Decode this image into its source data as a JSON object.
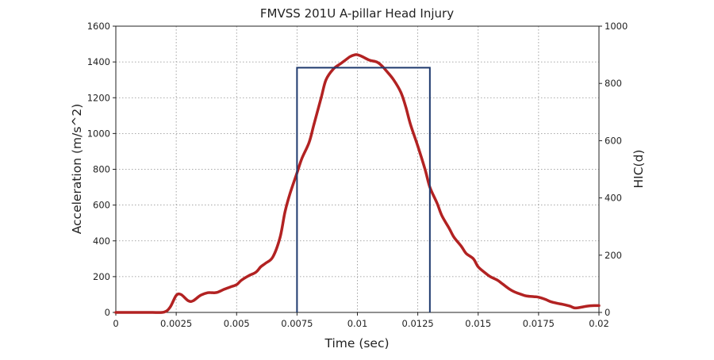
{
  "chart_data": {
    "type": "line",
    "title": "FMVSS 201U A-pillar Head Injury",
    "xlabel": "Time (sec)",
    "ylabel": "Acceleration (m/s^2)",
    "y2label": "HIC(d)",
    "xlim": [
      0,
      0.02
    ],
    "ylim": [
      0,
      1600
    ],
    "y2lim": [
      0,
      1000
    ],
    "x_ticks": [
      "0",
      "0.0025",
      "0.005",
      "0.0075",
      "0.01",
      "0.0125",
      "0.015",
      "0.0175",
      "0.02"
    ],
    "y_ticks": [
      "0",
      "200",
      "400",
      "600",
      "800",
      "1000",
      "1200",
      "1400",
      "1600"
    ],
    "y2_ticks": [
      "0",
      "200",
      "400",
      "600",
      "800",
      "1000"
    ],
    "grid": true,
    "colors": {
      "acceleration": "#b22222",
      "hic_window": "#1f3a6e"
    },
    "series": [
      {
        "axis": "left",
        "x": [
          0,
          0.001,
          0.0015,
          0.002,
          0.00225,
          0.0025,
          0.0027,
          0.003,
          0.0032,
          0.0035,
          0.0038,
          0.004,
          0.0042,
          0.0045,
          0.0048,
          0.005,
          0.0052,
          0.0055,
          0.0058,
          0.006,
          0.0062,
          0.0065,
          0.0068,
          0.007,
          0.0072,
          0.0075,
          0.0077,
          0.008,
          0.0082,
          0.0085,
          0.0087,
          0.009,
          0.0093,
          0.0095,
          0.0097,
          0.0099,
          0.01,
          0.0102,
          0.0105,
          0.0108,
          0.011,
          0.0112,
          0.0115,
          0.0118,
          0.012,
          0.0122,
          0.0125,
          0.0128,
          0.013,
          0.0133,
          0.0135,
          0.0138,
          0.014,
          0.0143,
          0.0145,
          0.0148,
          0.015,
          0.0153,
          0.0155,
          0.0158,
          0.016,
          0.0163,
          0.0165,
          0.0168,
          0.017,
          0.0173,
          0.0175,
          0.0178,
          0.018,
          0.0183,
          0.0185,
          0.0188,
          0.019,
          0.0193,
          0.0195,
          0.0198,
          0.02
        ],
        "y": [
          0,
          0,
          0,
          2,
          30,
          95,
          100,
          65,
          65,
          95,
          110,
          110,
          112,
          130,
          145,
          155,
          180,
          205,
          225,
          255,
          275,
          310,
          420,
          560,
          660,
          780,
          860,
          950,
          1050,
          1200,
          1300,
          1360,
          1390,
          1410,
          1430,
          1440,
          1440,
          1430,
          1410,
          1400,
          1380,
          1350,
          1300,
          1230,
          1150,
          1050,
          930,
          800,
          700,
          610,
          540,
          470,
          420,
          370,
          330,
          300,
          255,
          220,
          200,
          180,
          160,
          130,
          115,
          100,
          92,
          88,
          85,
          72,
          60,
          50,
          45,
          35,
          25,
          30,
          35,
          38,
          38
        ]
      },
      {
        "axis": "right",
        "x": [
          0.0075,
          0.0075,
          0.013,
          0.013
        ],
        "y": [
          0,
          855,
          855,
          0
        ]
      }
    ]
  }
}
